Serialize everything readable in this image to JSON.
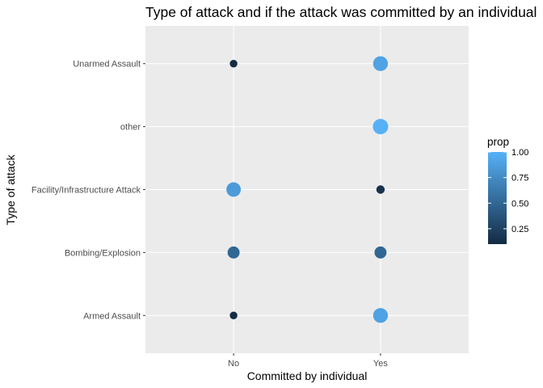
{
  "chart_data": {
    "type": "scatter",
    "title": "Type of attack and if the attack was committed by an individual",
    "xlabel": "Committed by individual",
    "ylabel": "Type of attack",
    "x_categories": [
      "No",
      "Yes"
    ],
    "y_categories": [
      "Armed Assault",
      "Bombing/Explosion",
      "Facility/Infrastructure Attack",
      "other",
      "Unarmed Assault"
    ],
    "points": [
      {
        "x": "No",
        "y": "Unarmed Assault",
        "prop": 0.1
      },
      {
        "x": "Yes",
        "y": "Unarmed Assault",
        "prop": 0.9
      },
      {
        "x": "Yes",
        "y": "other",
        "prop": 1.0
      },
      {
        "x": "No",
        "y": "Facility/Infrastructure Attack",
        "prop": 0.85
      },
      {
        "x": "Yes",
        "y": "Facility/Infrastructure Attack",
        "prop": 0.15
      },
      {
        "x": "No",
        "y": "Bombing/Explosion",
        "prop": 0.5
      },
      {
        "x": "Yes",
        "y": "Bombing/Explosion",
        "prop": 0.5
      },
      {
        "x": "No",
        "y": "Armed Assault",
        "prop": 0.1
      },
      {
        "x": "Yes",
        "y": "Armed Assault",
        "prop": 0.9
      }
    ],
    "legend": {
      "title": "prop",
      "ticks": [
        1.0,
        0.75,
        0.5,
        0.25
      ],
      "tick_labels": [
        "1.00",
        "0.75",
        "0.50",
        "0.25"
      ],
      "range": [
        0.1,
        1.0
      ],
      "low_color": "#132B43",
      "high_color": "#56B1F7"
    },
    "panel_background": "#EBEBEB",
    "grid_color": "#FFFFFF",
    "grid": true
  }
}
